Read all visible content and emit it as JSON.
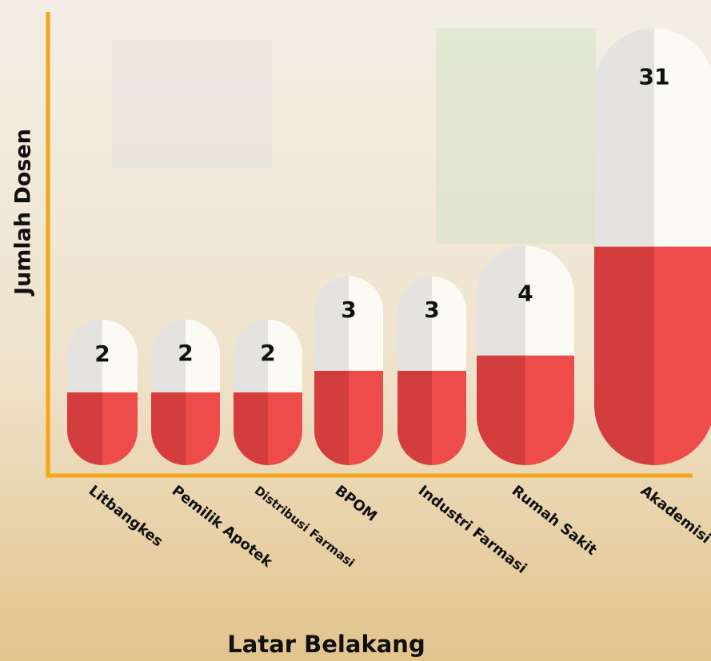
{
  "chart_data": {
    "type": "bar",
    "y_label": "Jumlah Dosen",
    "x_label": "Latar Belakang",
    "categories": [
      "Litbangkes",
      "Pemilik Apotek",
      "Distribusi Farmasi",
      "BPOM",
      "Industri Farmasi",
      "Rumah Sakit",
      "Akademisi"
    ],
    "values": [
      2,
      2,
      2,
      3,
      3,
      4,
      31
    ],
    "color": "#ee4b4b"
  }
}
